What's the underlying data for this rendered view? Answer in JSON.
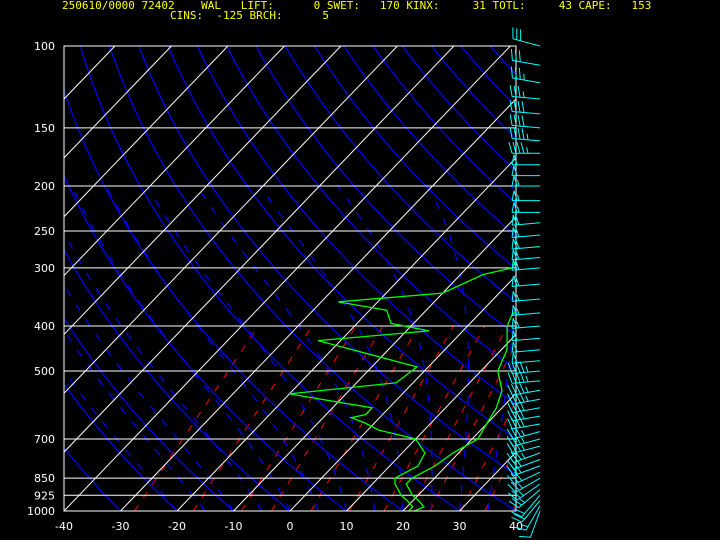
{
  "header": {
    "line1": "250610/0000 72402    WAL   LIFT:      0 SWET:   170 KINX:     31 TOTL:     43 CAPE:   153",
    "line2": "CINS:  -125 BRCH:      5"
  },
  "colors": {
    "background": "#000000",
    "frame": "#ffffff",
    "isobars": "#ffffff",
    "isotherms": "#ffffff",
    "dry_adiabats": "#0000ff",
    "moist_adiabats": "#0000ff",
    "mixing_ratio": "#ff0000",
    "temperature": "#00ff00",
    "dewpoint": "#00ff00",
    "wind_barbs": "#00ffff",
    "header_text": "#ffff00"
  },
  "chart_data": {
    "type": "line",
    "title": "",
    "xlabel": "",
    "ylabel": "",
    "xlim": [
      -40,
      40
    ],
    "ylim": [
      1000,
      100
    ],
    "y_scale": "log",
    "x_ticks": [
      "-40",
      "-30",
      "-20",
      "-10",
      "0",
      "10",
      "20",
      "30",
      "40"
    ],
    "y_ticks": [
      "100",
      "150",
      "200",
      "250",
      "300",
      "400",
      "500",
      "700",
      "850",
      "925",
      "1000"
    ],
    "series": [
      {
        "role": "temperature",
        "points": [
          [
            22,
            1000
          ],
          [
            23,
            980
          ],
          [
            21,
            950
          ],
          [
            19,
            925
          ],
          [
            16,
            875
          ],
          [
            16,
            850
          ],
          [
            18,
            800
          ],
          [
            19,
            750
          ],
          [
            21,
            700
          ],
          [
            20,
            650
          ],
          [
            19,
            600
          ],
          [
            17,
            550
          ],
          [
            13,
            500
          ],
          [
            11,
            450
          ],
          [
            7,
            400
          ],
          [
            6,
            380
          ],
          [
            6,
            350
          ],
          [
            5,
            320
          ],
          [
            3,
            300
          ],
          [
            0,
            270
          ],
          [
            -3,
            250
          ],
          [
            -5,
            220
          ],
          [
            -6,
            200
          ],
          [
            -6,
            180
          ],
          [
            -7,
            160
          ],
          [
            -8,
            150
          ],
          [
            -9,
            140
          ],
          [
            -9,
            130
          ],
          [
            -7,
            120
          ],
          [
            -3,
            112
          ],
          [
            0,
            107
          ],
          [
            2,
            100
          ]
        ]
      },
      {
        "role": "dewpoint",
        "points": [
          [
            21,
            1000
          ],
          [
            21,
            980
          ],
          [
            19,
            950
          ],
          [
            17,
            925
          ],
          [
            14,
            875
          ],
          [
            13,
            850
          ],
          [
            15,
            800
          ],
          [
            14,
            750
          ],
          [
            10,
            700
          ],
          [
            2,
            670
          ],
          [
            -2,
            645
          ],
          [
            -5,
            630
          ],
          [
            -3,
            620
          ],
          [
            -3,
            600
          ],
          [
            -20,
            560
          ],
          [
            -3,
            530
          ],
          [
            -2,
            490
          ],
          [
            -24,
            430
          ],
          [
            -6,
            410
          ],
          [
            -14,
            395
          ],
          [
            -17,
            370
          ],
          [
            -27,
            355
          ],
          [
            -10,
            340
          ],
          [
            -6,
            310
          ],
          [
            -2,
            300
          ],
          [
            -3,
            280
          ],
          [
            -5,
            260
          ],
          [
            -9,
            240
          ],
          [
            -7,
            220
          ],
          [
            -10,
            210
          ],
          [
            -11,
            190
          ],
          [
            -10,
            175
          ],
          [
            -11,
            150
          ],
          [
            -10,
            130
          ],
          [
            -9,
            115
          ],
          [
            -8,
            100
          ]
        ]
      }
    ],
    "wind_profile": [
      {
        "p": 1000,
        "dir": 200,
        "spd": 10
      },
      {
        "p": 975,
        "dir": 210,
        "spd": 15
      },
      {
        "p": 950,
        "dir": 220,
        "spd": 20
      },
      {
        "p": 925,
        "dir": 220,
        "spd": 20
      },
      {
        "p": 900,
        "dir": 230,
        "spd": 25
      },
      {
        "p": 875,
        "dir": 235,
        "spd": 25
      },
      {
        "p": 850,
        "dir": 240,
        "spd": 25
      },
      {
        "p": 825,
        "dir": 245,
        "spd": 30
      },
      {
        "p": 800,
        "dir": 250,
        "spd": 30
      },
      {
        "p": 775,
        "dir": 250,
        "spd": 30
      },
      {
        "p": 750,
        "dir": 250,
        "spd": 35
      },
      {
        "p": 725,
        "dir": 255,
        "spd": 35
      },
      {
        "p": 700,
        "dir": 255,
        "spd": 35
      },
      {
        "p": 675,
        "dir": 255,
        "spd": 35
      },
      {
        "p": 650,
        "dir": 260,
        "spd": 40
      },
      {
        "p": 625,
        "dir": 260,
        "spd": 40
      },
      {
        "p": 600,
        "dir": 260,
        "spd": 40
      },
      {
        "p": 575,
        "dir": 260,
        "spd": 45
      },
      {
        "p": 550,
        "dir": 260,
        "spd": 45
      },
      {
        "p": 525,
        "dir": 265,
        "spd": 45
      },
      {
        "p": 500,
        "dir": 265,
        "spd": 45
      },
      {
        "p": 475,
        "dir": 265,
        "spd": 50
      },
      {
        "p": 450,
        "dir": 265,
        "spd": 50
      },
      {
        "p": 425,
        "dir": 265,
        "spd": 50
      },
      {
        "p": 400,
        "dir": 265,
        "spd": 55
      },
      {
        "p": 375,
        "dir": 265,
        "spd": 55
      },
      {
        "p": 350,
        "dir": 265,
        "spd": 55
      },
      {
        "p": 325,
        "dir": 265,
        "spd": 60
      },
      {
        "p": 300,
        "dir": 265,
        "spd": 60
      },
      {
        "p": 285,
        "dir": 265,
        "spd": 60
      },
      {
        "p": 270,
        "dir": 265,
        "spd": 60
      },
      {
        "p": 255,
        "dir": 265,
        "spd": 60
      },
      {
        "p": 240,
        "dir": 265,
        "spd": 60
      },
      {
        "p": 228,
        "dir": 270,
        "spd": 55
      },
      {
        "p": 215,
        "dir": 270,
        "spd": 55
      },
      {
        "p": 200,
        "dir": 270,
        "spd": 55
      },
      {
        "p": 190,
        "dir": 270,
        "spd": 50
      },
      {
        "p": 180,
        "dir": 270,
        "spd": 50
      },
      {
        "p": 170,
        "dir": 270,
        "spd": 45
      },
      {
        "p": 160,
        "dir": 275,
        "spd": 45
      },
      {
        "p": 150,
        "dir": 275,
        "spd": 40
      },
      {
        "p": 140,
        "dir": 275,
        "spd": 40
      },
      {
        "p": 130,
        "dir": 275,
        "spd": 35
      },
      {
        "p": 120,
        "dir": 280,
        "spd": 35
      },
      {
        "p": 110,
        "dir": 280,
        "spd": 30
      },
      {
        "p": 100,
        "dir": 285,
        "spd": 30
      }
    ]
  }
}
